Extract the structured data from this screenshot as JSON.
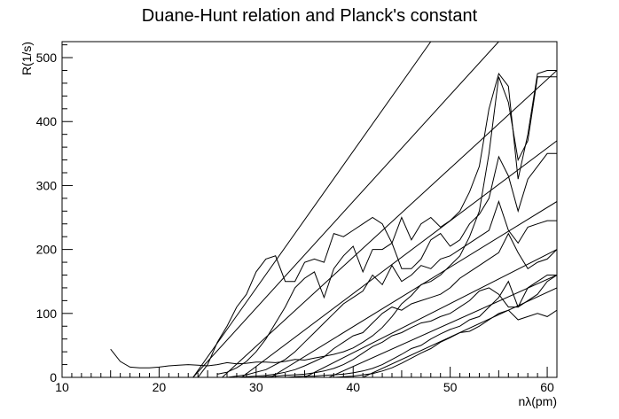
{
  "chart_data": {
    "type": "line",
    "title": "Duane-Hunt relation and Planck's constant",
    "xlabel": "nλ(pm)",
    "ylabel": "R(1/s)",
    "xlim": [
      10,
      61
    ],
    "ylim": [
      0,
      525
    ],
    "x_ticks": [
      10,
      20,
      30,
      40,
      50,
      60
    ],
    "y_ticks": [
      0,
      100,
      200,
      300,
      400,
      500
    ],
    "grid": false,
    "legend": "none",
    "measured_series": [
      {
        "x": [
          15,
          16,
          17,
          18,
          19,
          20,
          21,
          22,
          23,
          24,
          25,
          26,
          27,
          28,
          29,
          30,
          31,
          32,
          33,
          34,
          35,
          36,
          37,
          38,
          39,
          40,
          41,
          42,
          43,
          44,
          45,
          46,
          47,
          48,
          49,
          50,
          51,
          52,
          53,
          54,
          55,
          56,
          57,
          58,
          59,
          60,
          61
        ],
        "values": [
          44,
          25,
          16,
          15,
          15,
          16,
          18,
          19,
          20,
          19,
          18,
          20,
          23,
          21,
          22,
          24,
          24,
          23,
          25,
          28,
          27,
          30,
          33,
          36,
          40,
          46,
          55,
          65,
          78,
          95,
          115,
          128,
          145,
          150,
          160,
          175,
          190,
          220,
          260,
          350,
          470,
          430,
          340,
          370,
          470,
          470,
          470
        ]
      },
      {
        "x": [
          24,
          25,
          26,
          27,
          28,
          29,
          30,
          31,
          32,
          33,
          34,
          35,
          36,
          37,
          38,
          39,
          40,
          41,
          42,
          43,
          44,
          45,
          46,
          47,
          48,
          49,
          50,
          51,
          52,
          53,
          54,
          55,
          56,
          57,
          58,
          59,
          60,
          61
        ],
        "values": [
          0,
          20,
          55,
          80,
          110,
          130,
          165,
          185,
          190,
          150,
          150,
          180,
          185,
          180,
          225,
          220,
          230,
          240,
          250,
          240,
          210,
          250,
          215,
          240,
          250,
          235,
          245,
          260,
          290,
          330,
          420,
          475,
          455,
          310,
          380,
          475,
          480,
          480
        ]
      },
      {
        "x": [
          26,
          27,
          28,
          29,
          30,
          31,
          32,
          33,
          34,
          35,
          36,
          37,
          38,
          39,
          40,
          41,
          42,
          43,
          44,
          45,
          46,
          47,
          48,
          49,
          50,
          51,
          52,
          53,
          54,
          55,
          56,
          57,
          58,
          59,
          60,
          61
        ],
        "values": [
          5,
          8,
          15,
          25,
          40,
          60,
          85,
          110,
          140,
          155,
          165,
          125,
          170,
          190,
          205,
          165,
          200,
          200,
          210,
          170,
          170,
          185,
          215,
          225,
          205,
          215,
          240,
          255,
          280,
          345,
          315,
          260,
          310,
          330,
          350,
          350
        ]
      },
      {
        "x": [
          27,
          28,
          29,
          30,
          31,
          32,
          33,
          34,
          35,
          36,
          37,
          38,
          39,
          40,
          41,
          42,
          43,
          44,
          45,
          46,
          47,
          48,
          49,
          50,
          51,
          52,
          53,
          54,
          55,
          56,
          57,
          58,
          59,
          60,
          61
        ],
        "values": [
          0,
          2,
          4,
          8,
          12,
          20,
          28,
          40,
          55,
          70,
          85,
          100,
          115,
          125,
          135,
          160,
          145,
          175,
          150,
          160,
          175,
          170,
          185,
          190,
          200,
          210,
          220,
          230,
          275,
          230,
          210,
          235,
          240,
          245,
          245
        ]
      },
      {
        "x": [
          28,
          29,
          30,
          31,
          32,
          33,
          34,
          35,
          36,
          37,
          38,
          39,
          40,
          41,
          42,
          43,
          44,
          45,
          46,
          47,
          48,
          49,
          50,
          51,
          52,
          53,
          54,
          55,
          56,
          57,
          58,
          59,
          60,
          61
        ],
        "values": [
          0,
          1,
          2,
          3,
          5,
          8,
          12,
          18,
          25,
          32,
          45,
          55,
          65,
          70,
          85,
          100,
          110,
          105,
          115,
          120,
          125,
          130,
          140,
          155,
          165,
          175,
          185,
          195,
          225,
          195,
          170,
          180,
          185,
          200
        ]
      },
      {
        "x": [
          30,
          31,
          32,
          33,
          34,
          35,
          36,
          37,
          38,
          39,
          40,
          41,
          42,
          43,
          44,
          45,
          46,
          47,
          48,
          49,
          50,
          51,
          52,
          53,
          54,
          55,
          56,
          57,
          58,
          59,
          60,
          61
        ],
        "values": [
          0,
          1,
          2,
          3,
          4,
          5,
          7,
          10,
          14,
          20,
          28,
          38,
          48,
          55,
          65,
          70,
          78,
          85,
          88,
          95,
          100,
          110,
          120,
          135,
          140,
          130,
          110,
          110,
          140,
          150,
          160,
          160
        ]
      },
      {
        "x": [
          33,
          34,
          35,
          36,
          37,
          38,
          39,
          40,
          41,
          42,
          43,
          44,
          45,
          46,
          47,
          48,
          49,
          50,
          51,
          52,
          53,
          54,
          55,
          56,
          57,
          58,
          59,
          60,
          61
        ],
        "values": [
          0,
          1,
          2,
          2,
          3,
          4,
          5,
          7,
          10,
          14,
          20,
          28,
          36,
          45,
          50,
          60,
          68,
          75,
          80,
          90,
          95,
          110,
          125,
          150,
          110,
          120,
          130,
          150,
          160
        ]
      },
      {
        "x": [
          38,
          39,
          40,
          41,
          42,
          43,
          44,
          45,
          46,
          47,
          48,
          49,
          50,
          51,
          52,
          53,
          54,
          55,
          56,
          57,
          58,
          59,
          60,
          61
        ],
        "values": [
          0,
          1,
          2,
          4,
          6,
          10,
          15,
          22,
          30,
          38,
          45,
          55,
          62,
          70,
          72,
          80,
          90,
          100,
          105,
          90,
          95,
          100,
          95,
          105
        ]
      }
    ],
    "fit_lines": [
      {
        "x": [
          23.5,
          48.0
        ],
        "values": [
          0,
          525
        ]
      },
      {
        "x": [
          23.5,
          55.0
        ],
        "values": [
          0,
          525
        ]
      },
      {
        "x": [
          26.5,
          61.0
        ],
        "values": [
          0,
          480
        ]
      },
      {
        "x": [
          28.5,
          61.0
        ],
        "values": [
          0,
          370
        ]
      },
      {
        "x": [
          31.5,
          61.0
        ],
        "values": [
          0,
          275
        ]
      },
      {
        "x": [
          35.0,
          61.0
        ],
        "values": [
          0,
          200
        ]
      },
      {
        "x": [
          37.5,
          61.0
        ],
        "values": [
          0,
          160
        ]
      },
      {
        "x": [
          41.0,
          61.0
        ],
        "values": [
          0,
          140
        ]
      }
    ]
  }
}
